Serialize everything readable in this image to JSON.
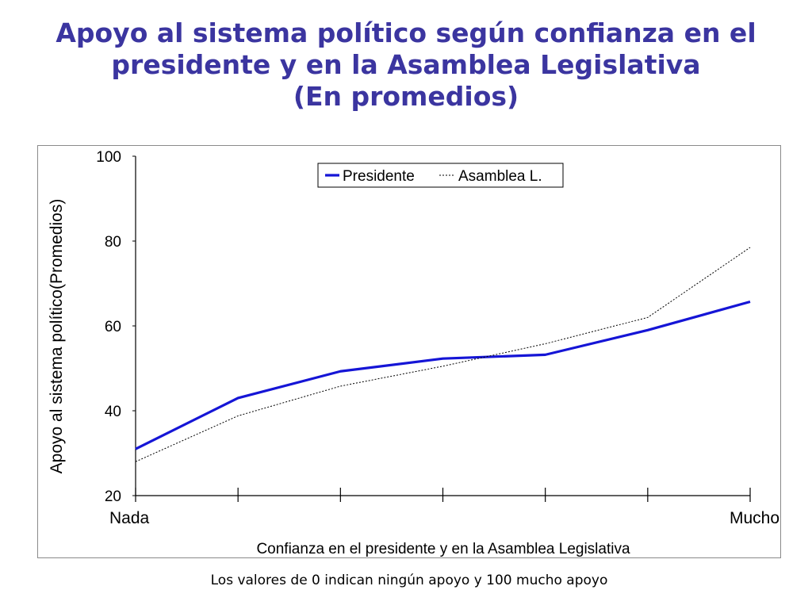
{
  "title": {
    "line1": "Apoyo al sistema político según confianza en el",
    "line2": "presidente y en la Asamblea Legislativa",
    "line3": "(En promedios)"
  },
  "footnote": "Los valores de 0 indican ningún apoyo y 100 mucho apoyo",
  "chart_data": {
    "type": "line",
    "xlabel": "Confianza en el presidente y en la Asamblea Legislativa",
    "ylabel": "Apoyo al sistema político(Promedios)",
    "x_tick_labels": [
      "Nada",
      "",
      "",
      "",
      "",
      "",
      "Mucho"
    ],
    "x": [
      1,
      2,
      3,
      4,
      5,
      6,
      7
    ],
    "ylim": [
      20,
      100
    ],
    "yticks": [
      20,
      40,
      60,
      80,
      100
    ],
    "grid": false,
    "legend_position": "top-center",
    "series": [
      {
        "name": "Presidente",
        "style": "solid",
        "color": "#1515d6",
        "values": [
          31,
          43,
          49.3,
          52.3,
          53.2,
          59,
          65.7
        ]
      },
      {
        "name": "Asamblea L.",
        "style": "dotted",
        "color": "#000000",
        "values": [
          28,
          38.8,
          45.8,
          50.5,
          55.8,
          62,
          78.5
        ]
      }
    ]
  }
}
